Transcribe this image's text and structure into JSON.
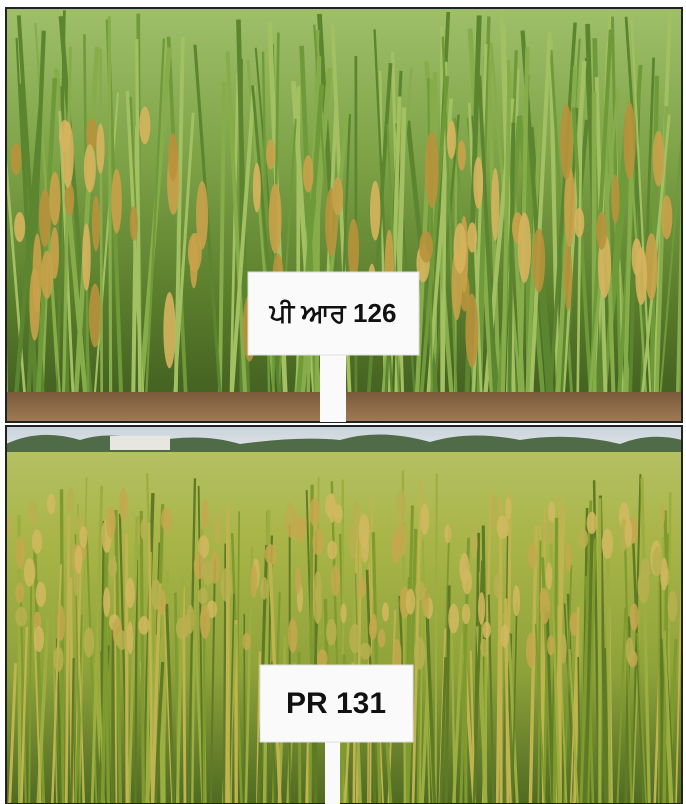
{
  "photos": [
    {
      "label": "ਪੀ ਆਰ 126"
    },
    {
      "label": "PR 131"
    }
  ]
}
